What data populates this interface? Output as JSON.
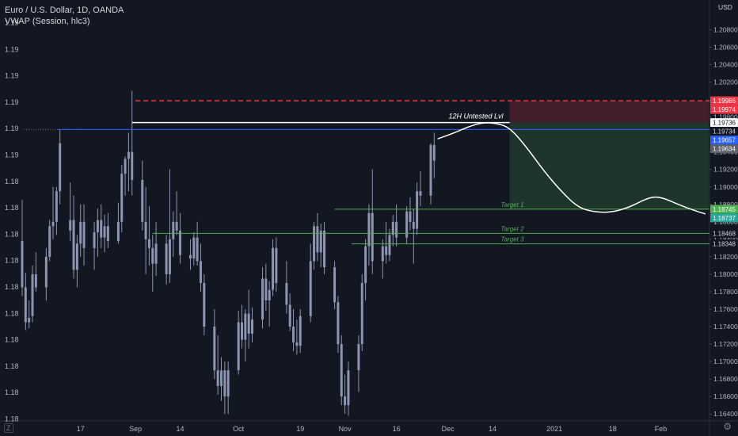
{
  "header": {
    "symbol": "Euro / U.S. Dollar, 1D, OANDA",
    "indicator": "VWAP (Session, hlc3)"
  },
  "axis": {
    "currency": "USD",
    "left_labels": [
      "1.19",
      "1.19",
      "1.19",
      "1.19",
      "1.19",
      "1.19",
      "1.18",
      "1.18",
      "1.18",
      "1.18",
      "1.18",
      "1.18",
      "1.18",
      "1.18",
      "1.18",
      "1.18"
    ],
    "right_ticks": [
      "1.20800",
      "1.20600",
      "1.20400",
      "1.20200",
      "1.19800",
      "1.19600",
      "1.19400",
      "1.19200",
      "1.19000",
      "1.18800",
      "1.18600",
      "1.18400",
      "1.18200",
      "1.18000",
      "1.17800",
      "1.17600",
      "1.17400",
      "1.17200",
      "1.17000",
      "1.16800",
      "1.16600",
      "1.16400"
    ],
    "x_labels": [
      {
        "label": "17",
        "day": 17
      },
      {
        "label": "Sep",
        "day": 33
      },
      {
        "label": "14",
        "day": 46
      },
      {
        "label": "Oct",
        "day": 63
      },
      {
        "label": "19",
        "day": 81
      },
      {
        "label": "Nov",
        "day": 94
      },
      {
        "label": "16",
        "day": 109
      },
      {
        "label": "Dec",
        "day": 124
      },
      {
        "label": "14",
        "day": 137
      },
      {
        "label": "2021",
        "day": 155
      },
      {
        "label": "18",
        "day": 172
      },
      {
        "label": "Feb",
        "day": 186
      }
    ],
    "bottom_left": "Z",
    "settings_icon": "gear-icon"
  },
  "badges": [
    {
      "value": "1.19986",
      "price": 1.19986,
      "bg": "#f23645",
      "fg": "#ffffff"
    },
    {
      "value": "1.19974",
      "price": 1.19974,
      "bg": "#f23645",
      "fg": "#ffffff"
    },
    {
      "value": "1.19736",
      "price": 1.19736,
      "bg": "#ffffff",
      "fg": "#131722"
    },
    {
      "value": "1.19734",
      "price": 1.19734,
      "bg": "#131722",
      "fg": "#d1d4dc"
    },
    {
      "value": "1.19657",
      "price": 1.19657,
      "bg": "#2962ff",
      "fg": "#ffffff"
    },
    {
      "value": "1.19634",
      "price": 1.19634,
      "bg": "#5d606b",
      "fg": "#ffffff"
    },
    {
      "value": "1.18745",
      "price": 1.18745,
      "bg": "#4caf50",
      "fg": "#ffffff"
    },
    {
      "value": "1.18737",
      "price": 1.18737,
      "bg": "#26a69a",
      "fg": "#ffffff"
    },
    {
      "value": "1.18468",
      "price": 1.18468,
      "bg": "#131722",
      "fg": "#d1d4dc"
    },
    {
      "value": "1.18348",
      "price": 1.18348,
      "bg": "#131722",
      "fg": "#d1d4dc"
    }
  ],
  "colors": {
    "background": "#131722",
    "candle": "#8c96b0",
    "resistance": "#ffffff",
    "vwap": "#2962ff",
    "stop": "#f23645",
    "targets": "#4caf50",
    "projection": "#ffffff"
  },
  "annotations": {
    "untested": {
      "text": "12H Untested Lvl",
      "price": 1.19736,
      "from_day": 32,
      "to_day": 142
    },
    "vwap_line": {
      "price": 1.19657,
      "from_day": 9,
      "to_day": 200
    },
    "stop_line": {
      "price": 1.19986,
      "from_day": 33,
      "to_day": 200
    },
    "targets": [
      {
        "label": "Target 1",
        "price": 1.18745,
        "from_day": 91
      },
      {
        "label": "Target 2",
        "price": 1.18468,
        "from_day": 38
      },
      {
        "label": "Target 3",
        "price": 1.18348,
        "from_day": 96
      }
    ],
    "short_position": {
      "from_day": 142,
      "to_day": 200,
      "entry": 1.19736,
      "stop": 1.19986,
      "target": 1.18745
    },
    "projection_path": [
      [
        121,
        1.1955
      ],
      [
        126,
        1.1962
      ],
      [
        130,
        1.1969
      ],
      [
        134,
        1.19736
      ],
      [
        138,
        1.1973
      ],
      [
        142,
        1.1968
      ],
      [
        147,
        1.1945
      ],
      [
        152,
        1.1918
      ],
      [
        157,
        1.1895
      ],
      [
        162,
        1.1876
      ],
      [
        167,
        1.1871
      ],
      [
        172,
        1.1871
      ],
      [
        177,
        1.1877
      ],
      [
        181,
        1.1885
      ],
      [
        184,
        1.1889
      ],
      [
        187,
        1.1887
      ],
      [
        191,
        1.188
      ],
      [
        195,
        1.1874
      ],
      [
        199,
        1.1869
      ]
    ]
  },
  "chart_data": {
    "type": "candlestick",
    "title": "Euro / U.S. Dollar, 1D, OANDA",
    "ylim": [
      1.1632,
      1.2114
    ],
    "xlim": [
      0,
      200
    ],
    "candles": [
      {
        "day": 0,
        "o": 1.1838,
        "h": 1.1885,
        "l": 1.1775,
        "c": 1.1785
      },
      {
        "day": 1,
        "o": 1.1785,
        "h": 1.1802,
        "l": 1.1736,
        "c": 1.1745
      },
      {
        "day": 2,
        "o": 1.1745,
        "h": 1.177,
        "l": 1.1738,
        "c": 1.175
      },
      {
        "day": 3,
        "o": 1.1752,
        "h": 1.181,
        "l": 1.1745,
        "c": 1.18
      },
      {
        "day": 4,
        "o": 1.18,
        "h": 1.1825,
        "l": 1.178,
        "c": 1.1785
      },
      {
        "day": 7,
        "o": 1.1785,
        "h": 1.183,
        "l": 1.177,
        "c": 1.182
      },
      {
        "day": 8,
        "o": 1.182,
        "h": 1.1862,
        "l": 1.1815,
        "c": 1.1855
      },
      {
        "day": 9,
        "o": 1.1855,
        "h": 1.19,
        "l": 1.184,
        "c": 1.186
      },
      {
        "day": 10,
        "o": 1.186,
        "h": 1.19,
        "l": 1.1845,
        "c": 1.1895
      },
      {
        "day": 11,
        "o": 1.1895,
        "h": 1.1965,
        "l": 1.188,
        "c": 1.195
      },
      {
        "day": 14,
        "o": 1.185,
        "h": 1.1905,
        "l": 1.1838,
        "c": 1.1862
      },
      {
        "day": 15,
        "o": 1.1862,
        "h": 1.189,
        "l": 1.1795,
        "c": 1.1805
      },
      {
        "day": 16,
        "o": 1.1805,
        "h": 1.1845,
        "l": 1.1785,
        "c": 1.1835
      },
      {
        "day": 17,
        "o": 1.1835,
        "h": 1.188,
        "l": 1.182,
        "c": 1.186
      },
      {
        "day": 18,
        "o": 1.186,
        "h": 1.188,
        "l": 1.181,
        "c": 1.183
      },
      {
        "day": 21,
        "o": 1.183,
        "h": 1.186,
        "l": 1.1805,
        "c": 1.1848
      },
      {
        "day": 22,
        "o": 1.1848,
        "h": 1.1875,
        "l": 1.182,
        "c": 1.1862
      },
      {
        "day": 23,
        "o": 1.1862,
        "h": 1.188,
        "l": 1.183,
        "c": 1.1842
      },
      {
        "day": 24,
        "o": 1.1842,
        "h": 1.1868,
        "l": 1.1825,
        "c": 1.1855
      },
      {
        "day": 25,
        "o": 1.1855,
        "h": 1.187,
        "l": 1.183,
        "c": 1.1838
      },
      {
        "day": 28,
        "o": 1.1838,
        "h": 1.1882,
        "l": 1.1835,
        "c": 1.186
      },
      {
        "day": 29,
        "o": 1.186,
        "h": 1.1925,
        "l": 1.1848,
        "c": 1.1915
      },
      {
        "day": 30,
        "o": 1.1915,
        "h": 1.1935,
        "l": 1.189,
        "c": 1.1932
      },
      {
        "day": 31,
        "o": 1.1932,
        "h": 1.1962,
        "l": 1.1895,
        "c": 1.194
      },
      {
        "day": 32,
        "o": 1.194,
        "h": 1.201,
        "l": 1.189,
        "c": 1.1908
      },
      {
        "day": 35,
        "o": 1.1908,
        "h": 1.193,
        "l": 1.185,
        "c": 1.186
      },
      {
        "day": 36,
        "o": 1.186,
        "h": 1.19,
        "l": 1.18,
        "c": 1.184
      },
      {
        "day": 37,
        "o": 1.184,
        "h": 1.1878,
        "l": 1.181,
        "c": 1.183
      },
      {
        "day": 38,
        "o": 1.183,
        "h": 1.1845,
        "l": 1.178,
        "c": 1.1812
      },
      {
        "day": 39,
        "o": 1.1812,
        "h": 1.186,
        "l": 1.1798,
        "c": 1.1835
      },
      {
        "day": 42,
        "o": 1.1835,
        "h": 1.1845,
        "l": 1.1788,
        "c": 1.18
      },
      {
        "day": 43,
        "o": 1.18,
        "h": 1.192,
        "l": 1.179,
        "c": 1.184
      },
      {
        "day": 44,
        "o": 1.184,
        "h": 1.1872,
        "l": 1.182,
        "c": 1.186
      },
      {
        "day": 45,
        "o": 1.186,
        "h": 1.1895,
        "l": 1.1845,
        "c": 1.185
      },
      {
        "day": 46,
        "o": 1.185,
        "h": 1.187,
        "l": 1.1812,
        "c": 1.1822
      },
      {
        "day": 49,
        "o": 1.1822,
        "h": 1.184,
        "l": 1.1805,
        "c": 1.1818
      },
      {
        "day": 50,
        "o": 1.1818,
        "h": 1.1848,
        "l": 1.181,
        "c": 1.1842
      },
      {
        "day": 51,
        "o": 1.1842,
        "h": 1.186,
        "l": 1.181,
        "c": 1.1815
      },
      {
        "day": 52,
        "o": 1.1815,
        "h": 1.1835,
        "l": 1.178,
        "c": 1.179
      },
      {
        "day": 53,
        "o": 1.179,
        "h": 1.18,
        "l": 1.173,
        "c": 1.174
      },
      {
        "day": 56,
        "o": 1.174,
        "h": 1.176,
        "l": 1.168,
        "c": 1.169
      },
      {
        "day": 57,
        "o": 1.169,
        "h": 1.173,
        "l": 1.1662,
        "c": 1.1672
      },
      {
        "day": 58,
        "o": 1.1672,
        "h": 1.1705,
        "l": 1.1655,
        "c": 1.169
      },
      {
        "day": 59,
        "o": 1.169,
        "h": 1.17,
        "l": 1.164,
        "c": 1.166
      },
      {
        "day": 60,
        "o": 1.166,
        "h": 1.17,
        "l": 1.164,
        "c": 1.169
      },
      {
        "day": 63,
        "o": 1.169,
        "h": 1.1758,
        "l": 1.1685,
        "c": 1.1745
      },
      {
        "day": 64,
        "o": 1.1745,
        "h": 1.1765,
        "l": 1.1715,
        "c": 1.1725
      },
      {
        "day": 65,
        "o": 1.1725,
        "h": 1.176,
        "l": 1.17,
        "c": 1.1755
      },
      {
        "day": 66,
        "o": 1.1755,
        "h": 1.1782,
        "l": 1.1715,
        "c": 1.1732
      },
      {
        "day": 67,
        "o": 1.1732,
        "h": 1.1762,
        "l": 1.1722,
        "c": 1.1748
      },
      {
        "day": 70,
        "o": 1.1748,
        "h": 1.1808,
        "l": 1.1738,
        "c": 1.1795
      },
      {
        "day": 71,
        "o": 1.1795,
        "h": 1.1812,
        "l": 1.1758,
        "c": 1.177
      },
      {
        "day": 72,
        "o": 1.177,
        "h": 1.1792,
        "l": 1.174,
        "c": 1.1782
      },
      {
        "day": 73,
        "o": 1.1782,
        "h": 1.184,
        "l": 1.1775,
        "c": 1.183
      },
      {
        "day": 74,
        "o": 1.183,
        "h": 1.1842,
        "l": 1.178,
        "c": 1.179
      },
      {
        "day": 77,
        "o": 1.179,
        "h": 1.1815,
        "l": 1.1755,
        "c": 1.1765
      },
      {
        "day": 78,
        "o": 1.1765,
        "h": 1.1778,
        "l": 1.1735,
        "c": 1.174
      },
      {
        "day": 79,
        "o": 1.174,
        "h": 1.176,
        "l": 1.1712,
        "c": 1.1722
      },
      {
        "day": 80,
        "o": 1.1722,
        "h": 1.1748,
        "l": 1.1708,
        "c": 1.1718
      },
      {
        "day": 81,
        "o": 1.1718,
        "h": 1.176,
        "l": 1.171,
        "c": 1.1752
      },
      {
        "day": 84,
        "o": 1.1752,
        "h": 1.1835,
        "l": 1.1745,
        "c": 1.1815
      },
      {
        "day": 85,
        "o": 1.1815,
        "h": 1.186,
        "l": 1.1805,
        "c": 1.1855
      },
      {
        "day": 86,
        "o": 1.1855,
        "h": 1.187,
        "l": 1.1815,
        "c": 1.1825
      },
      {
        "day": 87,
        "o": 1.1825,
        "h": 1.1858,
        "l": 1.1808,
        "c": 1.185
      },
      {
        "day": 88,
        "o": 1.185,
        "h": 1.186,
        "l": 1.18,
        "c": 1.1808
      },
      {
        "day": 91,
        "o": 1.1808,
        "h": 1.1815,
        "l": 1.176,
        "c": 1.1768
      },
      {
        "day": 92,
        "o": 1.1768,
        "h": 1.1775,
        "l": 1.171,
        "c": 1.172
      },
      {
        "day": 93,
        "o": 1.172,
        "h": 1.173,
        "l": 1.165,
        "c": 1.166
      },
      {
        "day": 94,
        "o": 1.166,
        "h": 1.1685,
        "l": 1.164,
        "c": 1.165
      },
      {
        "day": 95,
        "o": 1.165,
        "h": 1.17,
        "l": 1.1638,
        "c": 1.169
      },
      {
        "day": 98,
        "o": 1.169,
        "h": 1.173,
        "l": 1.1665,
        "c": 1.172
      },
      {
        "day": 99,
        "o": 1.172,
        "h": 1.18,
        "l": 1.1712,
        "c": 1.179
      },
      {
        "day": 100,
        "o": 1.179,
        "h": 1.184,
        "l": 1.177,
        "c": 1.1832
      },
      {
        "day": 101,
        "o": 1.1832,
        "h": 1.188,
        "l": 1.181,
        "c": 1.187
      },
      {
        "day": 102,
        "o": 1.187,
        "h": 1.192,
        "l": 1.18,
        "c": 1.1815
      },
      {
        "day": 105,
        "o": 1.1815,
        "h": 1.184,
        "l": 1.1795,
        "c": 1.1832
      },
      {
        "day": 106,
        "o": 1.1832,
        "h": 1.186,
        "l": 1.1812,
        "c": 1.1822
      },
      {
        "day": 107,
        "o": 1.1822,
        "h": 1.1852,
        "l": 1.1815,
        "c": 1.1845
      },
      {
        "day": 108,
        "o": 1.1845,
        "h": 1.1868,
        "l": 1.1832,
        "c": 1.186
      },
      {
        "day": 109,
        "o": 1.186,
        "h": 1.188,
        "l": 1.1832,
        "c": 1.1842
      },
      {
        "day": 112,
        "o": 1.1842,
        "h": 1.1878,
        "l": 1.1835,
        "c": 1.1872
      },
      {
        "day": 113,
        "o": 1.1872,
        "h": 1.1888,
        "l": 1.185,
        "c": 1.186
      },
      {
        "day": 114,
        "o": 1.186,
        "h": 1.1875,
        "l": 1.1812,
        "c": 1.1852
      },
      {
        "day": 115,
        "o": 1.1852,
        "h": 1.1905,
        "l": 1.1845,
        "c": 1.1895
      },
      {
        "day": 116,
        "o": 1.1895,
        "h": 1.1918,
        "l": 1.1878,
        "c": 1.189
      },
      {
        "day": 119,
        "o": 1.189,
        "h": 1.195,
        "l": 1.188,
        "c": 1.1948
      },
      {
        "day": 120,
        "o": 1.1948,
        "h": 1.1962,
        "l": 1.191,
        "c": 1.193
      }
    ]
  }
}
